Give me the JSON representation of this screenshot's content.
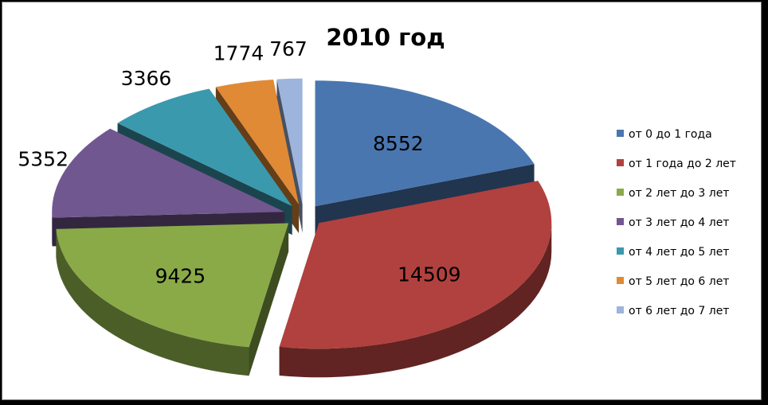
{
  "chart_data": {
    "type": "pie",
    "title": "2010 год",
    "categories": [
      "от 0 до 1 года",
      "от 1 года до 2 лет",
      "от 2 лет до 3 лет",
      "от 3 лет до 4 лет",
      "от 4 лет до 5 лет",
      "от 5 лет до 6 лет",
      "от 6 лет до 7 лет"
    ],
    "values": [
      8552,
      14509,
      9425,
      5352,
      3366,
      1774,
      767
    ],
    "colors": [
      "#4a76b0",
      "#b1413e",
      "#8aaa48",
      "#71578f",
      "#3b99ad",
      "#e08a36",
      "#9db4dc"
    ],
    "legend_position": "right",
    "exploded": true,
    "three_d": true
  }
}
